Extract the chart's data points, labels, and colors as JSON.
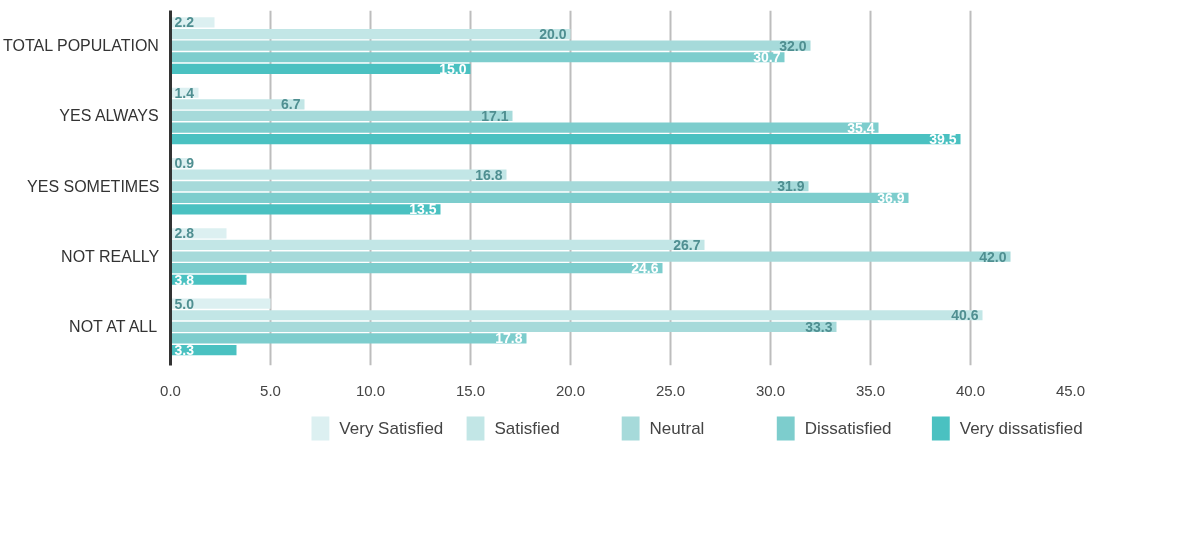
{
  "chart_data": {
    "type": "bar",
    "orientation": "horizontal",
    "categories": [
      "TOTAL POPULATION",
      "YES ALWAYS",
      "YES SOMETIMES",
      "NOT REALLY",
      "NOT AT ALL"
    ],
    "series": [
      {
        "name": "Very Satisfied",
        "color": "#dcf0f1",
        "values": [
          2.2,
          1.4,
          0.9,
          2.8,
          5.0
        ],
        "value_labels": [
          "2.2",
          "1.4",
          "0.9",
          "2.8",
          "5.0"
        ]
      },
      {
        "name": "Satisfied",
        "color": "#c2e6e6",
        "values": [
          20.0,
          6.7,
          16.8,
          26.7,
          40.6
        ],
        "value_labels": [
          "20.0",
          "6.7",
          "16.8",
          "26.7",
          "40.6"
        ]
      },
      {
        "name": "Neutral",
        "color": "#a6dada",
        "values": [
          32.0,
          17.1,
          31.9,
          42.0,
          33.3
        ],
        "value_labels": [
          "32.0",
          "17.1",
          "31.9",
          "42.0",
          "33.3"
        ]
      },
      {
        "name": "Dissatisfied",
        "color": "#7dcdcd",
        "values": [
          30.7,
          35.4,
          36.9,
          24.6,
          17.8
        ],
        "value_labels": [
          "30.7",
          "35.4",
          "36.9",
          "24.6",
          "17.8"
        ]
      },
      {
        "name": "Very dissatisfied",
        "color": "#4ac1c1",
        "values": [
          15.0,
          39.5,
          13.5,
          3.8,
          3.3
        ],
        "value_labels": [
          "15.0",
          "39.5",
          "13.5",
          "3.8",
          "3.3"
        ]
      }
    ],
    "xlim": [
      0,
      45
    ],
    "xticks": [
      {
        "value": 0,
        "label": "0.0"
      },
      {
        "value": 5,
        "label": "5.0"
      },
      {
        "value": 10,
        "label": "10.0"
      },
      {
        "value": 15,
        "label": "15.0"
      },
      {
        "value": 20,
        "label": "20.0"
      },
      {
        "value": 25,
        "label": "25.0"
      },
      {
        "value": 30,
        "label": "30.0"
      },
      {
        "value": 35,
        "label": "35.0"
      },
      {
        "value": 40,
        "label": "40.0"
      },
      {
        "value": 45,
        "label": "45.0"
      }
    ],
    "grid": "x",
    "legend": "bottom"
  }
}
